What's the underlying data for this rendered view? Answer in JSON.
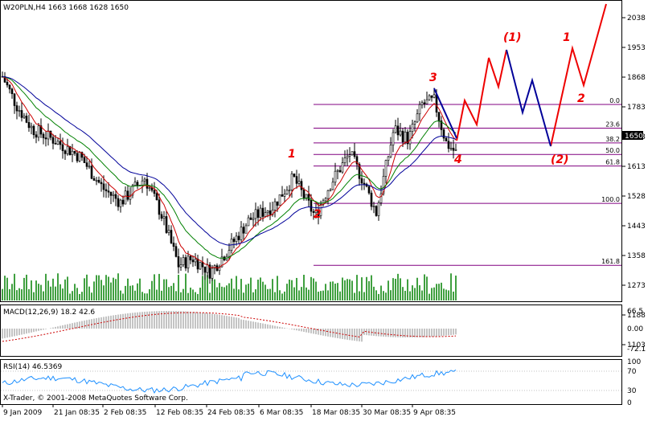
{
  "colors": {
    "up_candle": "#ffffff",
    "down_candle": "#000000",
    "ma_fast": "#cc0000",
    "ma_mid": "#008000",
    "ma_slow": "#000099",
    "fib": "#800080",
    "wave_red": "#ee0000",
    "wave_blue": "#000099",
    "volume": "#008000",
    "macd_hist": "#b0b0b0",
    "macd_signal": "#cc0000",
    "rsi": "#1e90ff",
    "current_price_bg": "#000000"
  },
  "main_panel": {
    "title": "W20PLN,H4  1663 1668 1628 1650",
    "current_price": "1650",
    "price_ticks": [
      "2038",
      "1953",
      "1868",
      "1783",
      "1698",
      "1613",
      "1528",
      "1443",
      "1358",
      "1273",
      "1188",
      "1103"
    ]
  },
  "fib_levels": [
    {
      "label": "0.0",
      "price": 1790
    },
    {
      "label": "23.6",
      "price": 1722
    },
    {
      "label": "38.2",
      "price": 1680
    },
    {
      "label": "50.0",
      "price": 1647
    },
    {
      "label": "61.8",
      "price": 1614
    },
    {
      "label": "100.0",
      "price": 1507
    },
    {
      "label": "161.8",
      "price": 1330
    }
  ],
  "wave_labels": [
    {
      "text": "1",
      "color": "red"
    },
    {
      "text": "2",
      "color": "red"
    },
    {
      "text": "3",
      "color": "red"
    },
    {
      "text": "4",
      "color": "red"
    },
    {
      "text": "(1)",
      "color": "red"
    },
    {
      "text": "(2)",
      "color": "red"
    },
    {
      "text": "1",
      "color": "red"
    },
    {
      "text": "2",
      "color": "red"
    }
  ],
  "macd_panel": {
    "title": "MACD(12,26,9) 18.2 42.6",
    "ticks": [
      "66.5",
      "0.00",
      "-72.1"
    ]
  },
  "rsi_panel": {
    "title": "RSI(14) 46.5369",
    "ticks": [
      "100",
      "70",
      "30",
      "0"
    ],
    "copyright": "X-Trader, © 2001-2008 MetaQuotes Software Corp."
  },
  "x_ticks": [
    "9 Jan 2009",
    "21 Jan 08:35",
    "2 Feb 08:35",
    "12 Feb 08:35",
    "24 Feb 08:35",
    "6 Mar 08:35",
    "18 Mar 08:35",
    "30 Mar 08:35",
    "9 Apr 08:35"
  ],
  "chart_data": {
    "type": "candlestick",
    "symbol": "W20PLN",
    "timeframe": "H4",
    "ylim": [
      1103,
      2080
    ],
    "key_points": [
      {
        "x": "9 Jan 2009",
        "close": 1860
      },
      {
        "x": "21 Jan 08:35",
        "close": 1690
      },
      {
        "x": "2 Feb 08:35",
        "close": 1520
      },
      {
        "x": "12 Feb 08:35",
        "close": 1360
      },
      {
        "x": "24 Feb 08:35",
        "close": 1420
      },
      {
        "x": "6 Mar 08:35",
        "close": 1500
      },
      {
        "x": "18 Mar 08:35",
        "close": 1560
      },
      {
        "x": "30 Mar 08:35",
        "close": 1620
      },
      {
        "x": "9 Apr 08:35",
        "close": 1760
      }
    ],
    "macd_range": [
      -72.1,
      66.5
    ],
    "rsi_range": [
      0,
      100
    ],
    "rsi_last": 46.5369
  }
}
